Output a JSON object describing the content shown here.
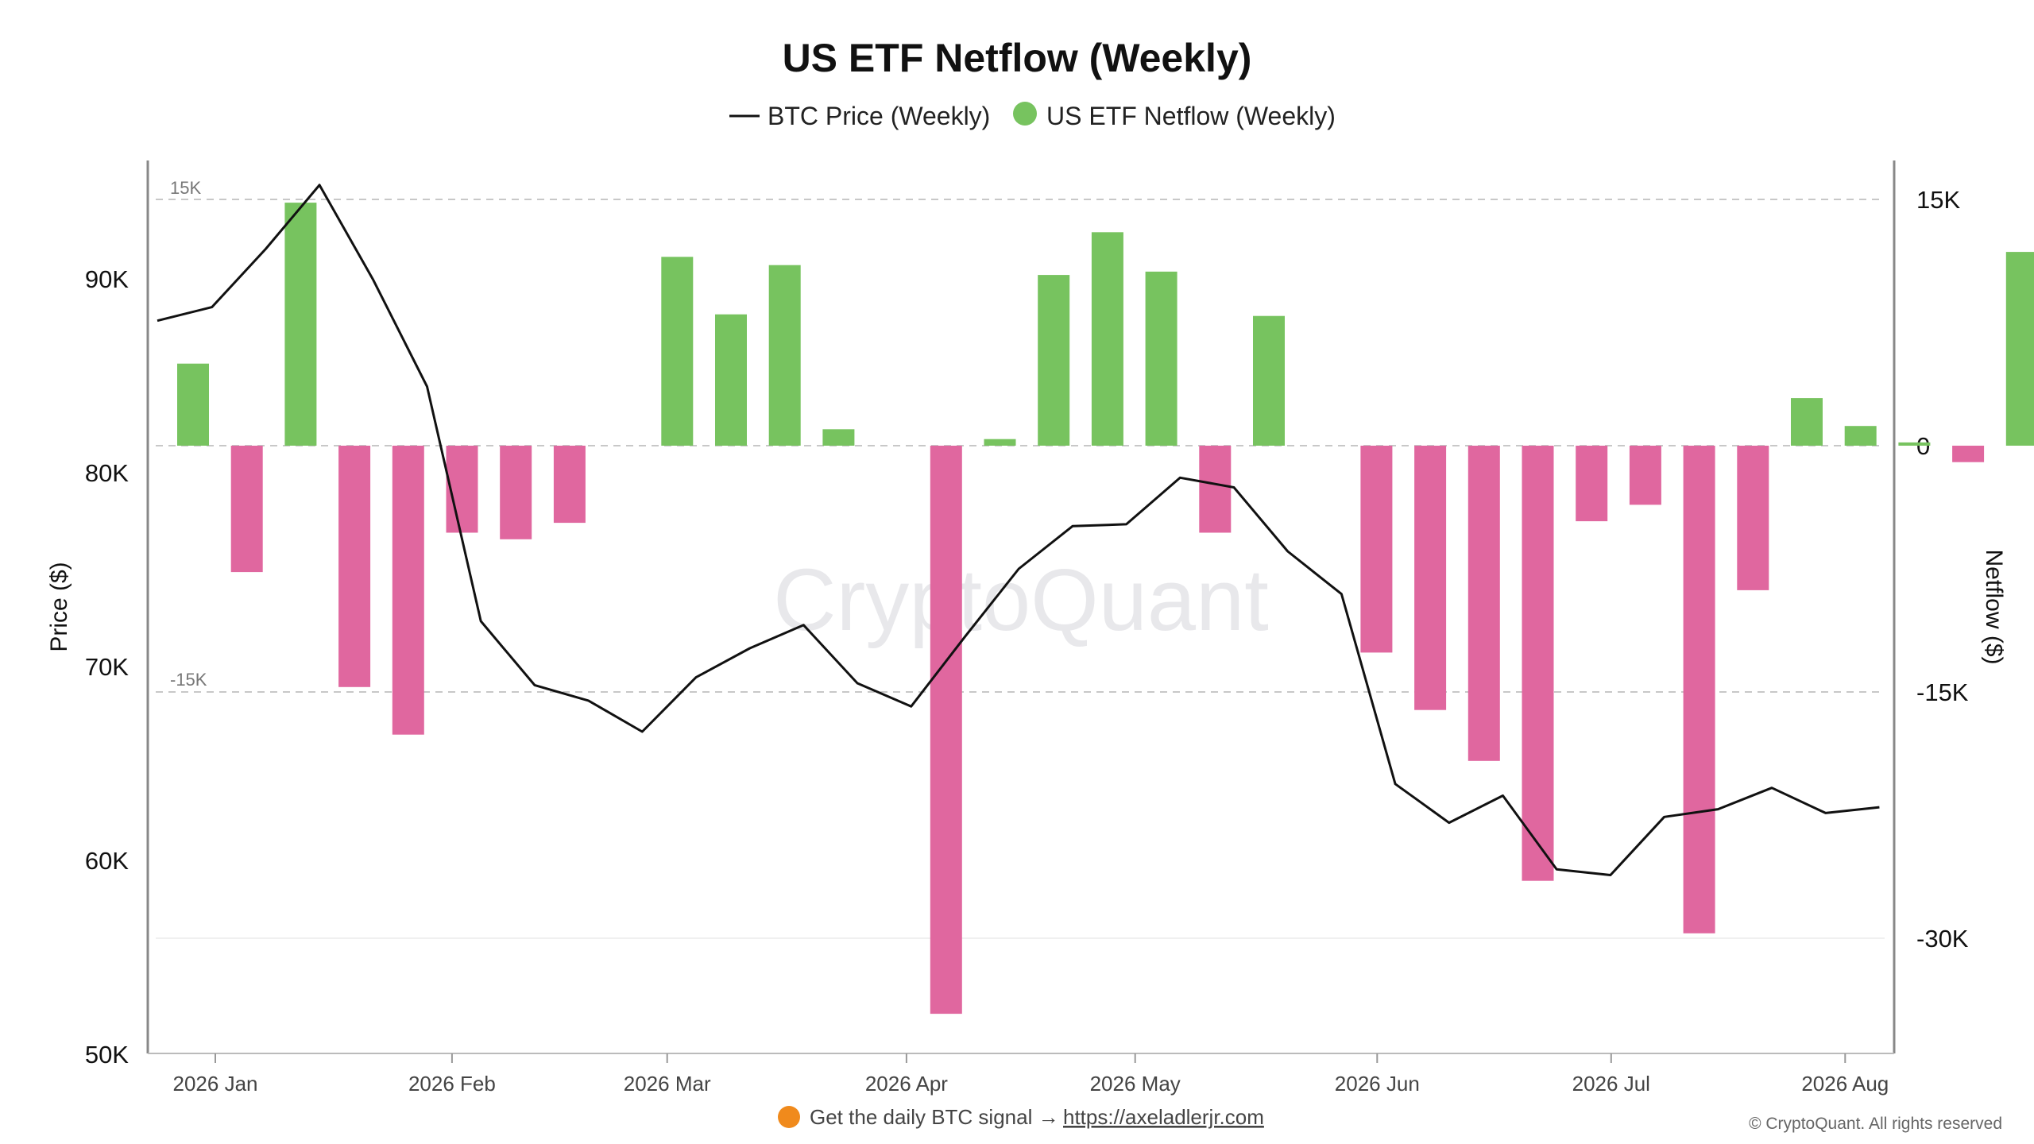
{
  "chart_data": {
    "type": "bar",
    "title": "US ETF Netflow (Weekly)",
    "legend": {
      "placement": "top-center",
      "entries": [
        "BTC Price (Weekly)",
        "US ETF Netflow (Weekly)"
      ]
    },
    "xlabel": "",
    "ylabel_left": "Price ($)",
    "ylabel_right": "Netflow ($)",
    "y_left_ticks": [
      "50K",
      "60K",
      "70K",
      "80K",
      "90K"
    ],
    "y_left_range": [
      50000,
      95000
    ],
    "y_right_ticks": [
      "-30K",
      "-15K",
      "0",
      "15K"
    ],
    "y_right_range": [
      -37000,
      16000
    ],
    "ref_line_labels": [
      "15K",
      "-15K"
    ],
    "x_ticks": [
      "2026 Jan",
      "2026 Feb",
      "2026 Mar",
      "2026 Apr",
      "2026 May",
      "2026 Jun",
      "2026 Jul",
      "2026 Aug"
    ],
    "x_tick_weeks": [
      0.7,
      5.1,
      9.1,
      13.55,
      17.8,
      22.3,
      26.65,
      31.0
    ],
    "grid": "dashed reference lines at 15K, 0, -15K",
    "colors": {
      "positive": "#77c35f",
      "negative": "#e0679f",
      "price_line": "#111111"
    },
    "series": [
      {
        "name": "US ETF Netflow (Weekly)",
        "kind": "bar",
        "values": [
          5000,
          -7700,
          14800,
          -14700,
          -17600,
          -5300,
          -5700,
          -4700,
          0,
          11500,
          8000,
          11000,
          1000,
          0,
          -34600,
          400,
          10400,
          13000,
          10600,
          -5300,
          7900,
          0,
          -12600,
          -16100,
          -19200,
          -26500,
          -4600,
          -3600,
          -29700,
          -8800,
          2900,
          1200,
          200,
          -1000,
          11800
        ]
      },
      {
        "name": "BTC Price (Weekly)",
        "kind": "line",
        "values": [
          87800,
          88500,
          91500,
          94800,
          89900,
          84400,
          72300,
          69000,
          68200,
          66600,
          69400,
          70900,
          72100,
          69100,
          67900,
          71500,
          75000,
          77200,
          77300,
          79700,
          79200,
          75900,
          73700,
          63900,
          61900,
          63300,
          59500,
          59200,
          62200,
          62600,
          63700,
          62400,
          62700
        ]
      }
    ]
  },
  "watermark": "CryptoQuant",
  "footer": {
    "promo_text": "Get the daily BTC signal →",
    "promo_link": "https://axeladlerjr.com",
    "copyright": "© CryptoQuant. All rights reserved"
  }
}
